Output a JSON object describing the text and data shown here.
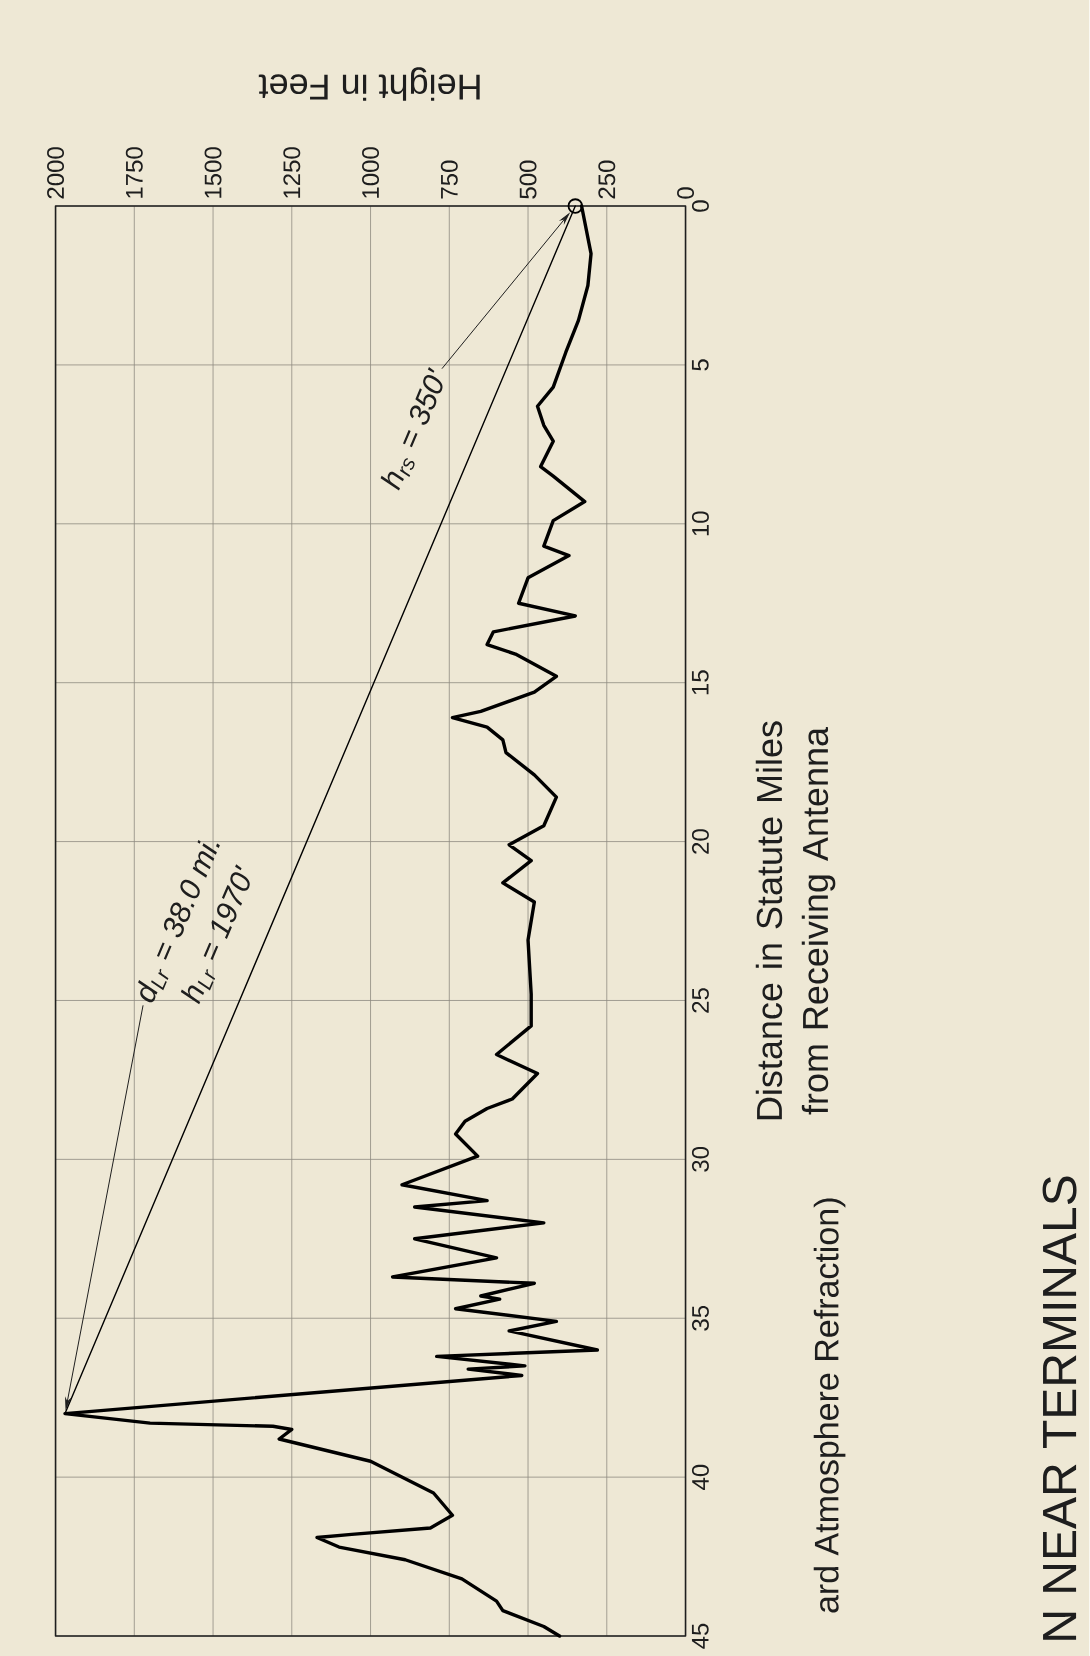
{
  "chart_data": {
    "type": "line",
    "orientation": "horizontal",
    "title": "N NEAR TERMINALS",
    "subtitle": "ard Atmosphere Refraction)",
    "xlabel": "Height in Feet",
    "ylabel": "Distance in Statute Miles from Receiving Antenna",
    "xlim": [
      2000,
      0
    ],
    "xticks": [
      0,
      250,
      500,
      750,
      1000,
      1250,
      1500,
      1750,
      2000
    ],
    "ylim": [
      45,
      0
    ],
    "yticks": [
      0,
      5,
      10,
      15,
      20,
      25,
      30,
      35,
      40,
      45
    ],
    "grid": true,
    "series": [
      {
        "color": "#000000",
        "x": [
          0,
          1.5,
          2.5,
          3.6,
          4.6,
          5.7,
          6.3,
          6.9,
          7.4,
          8.2,
          8.5,
          9.3,
          9.9,
          10.7,
          11.0,
          11.7,
          12.5,
          12.9,
          13.4,
          13.8,
          14.1,
          14.8,
          15.3,
          15.9,
          16.1,
          16.4,
          16.8,
          17.2,
          17.9,
          18.6,
          19.5,
          20.1,
          20.6,
          21.3,
          21.9,
          23.1,
          24.8,
          25.8,
          26.7,
          27.3,
          28.1,
          28.4,
          28.8,
          29.2,
          29.9,
          30.8,
          31.3,
          31.5,
          32.0,
          32.5,
          33.1,
          33.7,
          33.9,
          34.3,
          34.4,
          34.7,
          35.1,
          35.4,
          36.0,
          36.2,
          36.5,
          36.6,
          36.8,
          38.0,
          38.3,
          38.4,
          38.5,
          38.8,
          39.5,
          40.5,
          41.2,
          41.6,
          41.8,
          41.9,
          42.2,
          42.6,
          43.2,
          43.9,
          44.2,
          44.7,
          45.0
        ],
        "values": [
          330,
          300,
          310,
          340,
          380,
          420,
          470,
          450,
          420,
          460,
          420,
          320,
          420,
          450,
          370,
          500,
          530,
          350,
          610,
          630,
          540,
          410,
          480,
          650,
          740,
          630,
          580,
          570,
          480,
          410,
          450,
          560,
          490,
          580,
          480,
          500,
          490,
          490,
          600,
          470,
          550,
          630,
          700,
          730,
          660,
          900,
          630,
          860,
          450,
          860,
          600,
          930,
          480,
          650,
          590,
          730,
          410,
          560,
          280,
          790,
          510,
          690,
          520,
          1970,
          1700,
          1310,
          1250,
          1290,
          1000,
          800,
          740,
          810,
          1060,
          1170,
          1100,
          890,
          710,
          600,
          580,
          450,
          400
        ]
      },
      {
        "type": "line",
        "color": "#000000",
        "x": [
          0,
          38.0
        ],
        "values": [
          350,
          1970
        ]
      },
      {
        "type": "scatter",
        "color": "#000000",
        "marker": "circle",
        "x": [
          0
        ],
        "values": [
          350
        ]
      }
    ],
    "annotations": [
      {
        "text": "d$_{Lr}$ = 38.0 mi.",
        "x": 1970,
        "y": 38.0
      },
      "h$_{Lr}$ = 1970'",
      {
        "text": "h$_{rs}$ = 350'",
        "x": 350,
        "y": 0
      }
    ]
  }
}
